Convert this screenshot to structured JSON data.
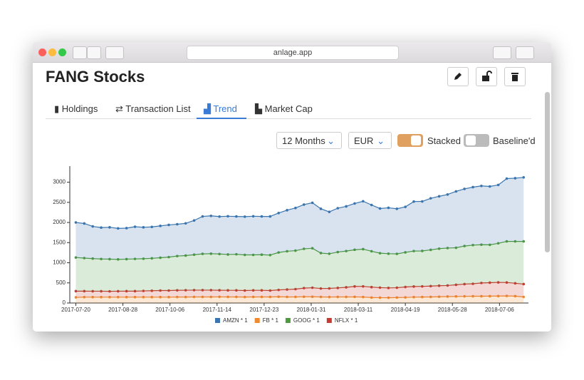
{
  "browser": {
    "url": "anlage.app"
  },
  "page": {
    "title": "FANG Stocks",
    "tabs": [
      "Holdings",
      "Transaction List",
      "Trend",
      "Market Cap"
    ],
    "period": "12 Months",
    "currency": "EUR",
    "toggles": [
      "Stacked",
      "Baseline'd"
    ]
  },
  "chart_data": {
    "type": "area",
    "stacked": true,
    "stack_order": [
      1,
      3,
      2,
      0
    ],
    "markers": true,
    "legend": "bottom",
    "x": [
      "2017-07-20",
      "2017-07-27",
      "2017-08-03",
      "2017-08-10",
      "2017-08-17",
      "2017-08-24",
      "2017-08-31",
      "2017-09-07",
      "2017-09-14",
      "2017-09-21",
      "2017-09-28",
      "2017-10-05",
      "2017-10-12",
      "2017-10-19",
      "2017-10-26",
      "2017-11-02",
      "2017-11-09",
      "2017-11-16",
      "2017-11-23",
      "2017-11-30",
      "2017-12-07",
      "2017-12-14",
      "2017-12-21",
      "2017-12-28",
      "2018-01-04",
      "2018-01-11",
      "2018-01-18",
      "2018-01-25",
      "2018-02-01",
      "2018-02-08",
      "2018-02-15",
      "2018-02-22",
      "2018-03-01",
      "2018-03-08",
      "2018-03-15",
      "2018-03-22",
      "2018-03-29",
      "2018-04-05",
      "2018-04-12",
      "2018-04-19",
      "2018-04-26",
      "2018-05-03",
      "2018-05-10",
      "2018-05-17",
      "2018-05-24",
      "2018-05-31",
      "2018-06-07",
      "2018-06-14",
      "2018-06-21",
      "2018-06-28",
      "2018-07-05",
      "2018-07-12",
      "2018-07-19",
      "2018-07-26"
    ],
    "series": [
      {
        "name": "AMZN * 1",
        "color": "#3a75b0",
        "values": [
          870,
          860,
          800,
          780,
          790,
          770,
          770,
          800,
          780,
          780,
          790,
          800,
          790,
          800,
          850,
          930,
          940,
          930,
          950,
          940,
          950,
          960,
          950,
          960,
          980,
          1020,
          1060,
          1100,
          1130,
          1100,
          1040,
          1090,
          1110,
          1150,
          1190,
          1150,
          1110,
          1140,
          1120,
          1130,
          1230,
          1230,
          1280,
          1300,
          1330,
          1400,
          1420,
          1440,
          1460,
          1450,
          1450,
          1560,
          1570,
          1590
        ]
      },
      {
        "name": "FB * 1",
        "color": "#ef8a2f",
        "values": [
          140,
          145,
          145,
          145,
          145,
          145,
          145,
          145,
          145,
          145,
          145,
          145,
          148,
          148,
          150,
          150,
          150,
          152,
          150,
          150,
          148,
          150,
          150,
          150,
          155,
          150,
          150,
          155,
          155,
          150,
          148,
          150,
          150,
          152,
          148,
          135,
          132,
          130,
          135,
          138,
          145,
          148,
          150,
          155,
          160,
          162,
          165,
          168,
          168,
          170,
          172,
          175,
          170,
          150
        ]
      },
      {
        "name": "GOOG * 1",
        "color": "#4d9a3f",
        "values": [
          835,
          820,
          810,
          800,
          800,
          790,
          795,
          800,
          800,
          805,
          815,
          830,
          850,
          860,
          880,
          900,
          905,
          900,
          890,
          895,
          885,
          880,
          885,
          880,
          930,
          950,
          955,
          975,
          980,
          880,
          860,
          890,
          900,
          910,
          925,
          890,
          855,
          850,
          840,
          860,
          880,
          880,
          900,
          920,
          930,
          920,
          945,
          960,
          950,
          940,
          970,
          1020,
          1040,
          1060
        ]
      },
      {
        "name": "NFLX * 1",
        "color": "#c63a32",
        "values": [
          155,
          150,
          148,
          148,
          145,
          148,
          150,
          150,
          155,
          160,
          165,
          165,
          168,
          170,
          170,
          170,
          170,
          165,
          165,
          165,
          162,
          165,
          165,
          160,
          170,
          185,
          195,
          215,
          225,
          210,
          215,
          225,
          240,
          260,
          265,
          260,
          250,
          245,
          245,
          260,
          265,
          265,
          270,
          275,
          275,
          290,
          305,
          310,
          330,
          335,
          340,
          335,
          320,
          320
        ]
      }
    ],
    "xlim": [
      "2017-07-15",
      "2018-07-30"
    ],
    "xticks": [
      "2017-07-20",
      "2017-08-28",
      "2017-10-06",
      "2017-11-14",
      "2017-12-23",
      "2018-01-31",
      "2018-03-11",
      "2018-04-19",
      "2018-05-28",
      "2018-07-06"
    ],
    "ylim": [
      0,
      3400
    ],
    "yticks": [
      0,
      500,
      1000,
      1500,
      2000,
      2500,
      3000
    ]
  }
}
